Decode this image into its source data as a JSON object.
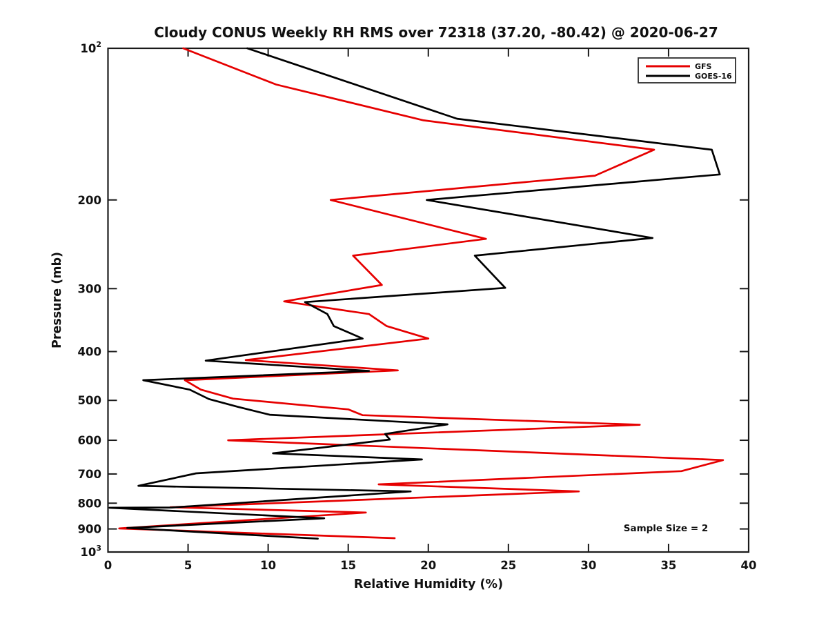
{
  "chart_data": {
    "type": "line",
    "title": "Cloudy CONUS Weekly RH RMS over 72318 (37.20, -80.42) @ 2020-06-27",
    "xlabel": "Relative Humidity (%)",
    "ylabel": "Pressure (mb)",
    "annotation": "Sample Size = 2",
    "xlim": [
      0,
      40
    ],
    "xticks": [
      0,
      5,
      10,
      15,
      20,
      25,
      30,
      35,
      40
    ],
    "yscale": "log",
    "ylim": [
      100,
      1000
    ],
    "yticks": [
      {
        "v": 100,
        "label": "10^2"
      },
      {
        "v": 200,
        "label": "200"
      },
      {
        "v": 300,
        "label": "300"
      },
      {
        "v": 400,
        "label": "400"
      },
      {
        "v": 500,
        "label": "500"
      },
      {
        "v": 600,
        "label": "600"
      },
      {
        "v": 700,
        "label": "700"
      },
      {
        "v": 800,
        "label": "800"
      },
      {
        "v": 900,
        "label": "900"
      },
      {
        "v": 1000,
        "label": "10^3"
      }
    ],
    "grid": false,
    "legend_position": "upper right",
    "colors": {
      "axis": "#1a1a1a",
      "gfs": "#e60000",
      "goes16": "#000000"
    },
    "legend": [
      {
        "label": "GFS",
        "color": "#e60000"
      },
      {
        "label": "GOES-16",
        "color": "#000000"
      }
    ],
    "series": [
      {
        "name": "GFS",
        "color": "#e60000",
        "points_rh_pressure": [
          [
            4.7,
            100
          ],
          [
            10.5,
            118
          ],
          [
            19.7,
            139
          ],
          [
            34.1,
            159
          ],
          [
            30.4,
            179
          ],
          [
            13.9,
            200
          ],
          [
            23.6,
            239
          ],
          [
            15.3,
            258
          ],
          [
            17.1,
            295
          ],
          [
            11.0,
            318
          ],
          [
            16.3,
            337
          ],
          [
            17.4,
            356
          ],
          [
            20.0,
            377
          ],
          [
            8.6,
            416
          ],
          [
            18.1,
            436
          ],
          [
            4.8,
            456
          ],
          [
            5.8,
            476
          ],
          [
            7.8,
            496
          ],
          [
            15.0,
            521
          ],
          [
            15.9,
            535
          ],
          [
            33.2,
            559
          ],
          [
            7.5,
            600
          ],
          [
            38.4,
            657
          ],
          [
            35.8,
            691
          ],
          [
            16.9,
            734
          ],
          [
            29.4,
            758
          ],
          [
            3.9,
            815
          ],
          [
            16.1,
            835
          ],
          [
            0.7,
            898
          ],
          [
            17.9,
            939
          ]
        ]
      },
      {
        "name": "GOES-16",
        "color": "#000000",
        "points_rh_pressure": [
          [
            8.7,
            100
          ],
          [
            21.8,
            138
          ],
          [
            37.7,
            159
          ],
          [
            38.2,
            178
          ],
          [
            19.9,
            200
          ],
          [
            34.0,
            238
          ],
          [
            22.9,
            258
          ],
          [
            24.8,
            299
          ],
          [
            12.3,
            319
          ],
          [
            13.7,
            337
          ],
          [
            14.1,
            356
          ],
          [
            15.9,
            377
          ],
          [
            6.1,
            417
          ],
          [
            16.3,
            437
          ],
          [
            2.2,
            456
          ],
          [
            5.1,
            476
          ],
          [
            6.3,
            497
          ],
          [
            8.1,
            515
          ],
          [
            10.1,
            534
          ],
          [
            21.2,
            558
          ],
          [
            17.3,
            583
          ],
          [
            17.6,
            598
          ],
          [
            10.3,
            637
          ],
          [
            19.6,
            655
          ],
          [
            5.5,
            698
          ],
          [
            1.9,
            739
          ],
          [
            18.9,
            758
          ],
          [
            4.0,
            816
          ],
          [
            0.1,
            817
          ],
          [
            13.5,
            857
          ],
          [
            1.2,
            896
          ],
          [
            13.1,
            941
          ]
        ]
      }
    ]
  }
}
